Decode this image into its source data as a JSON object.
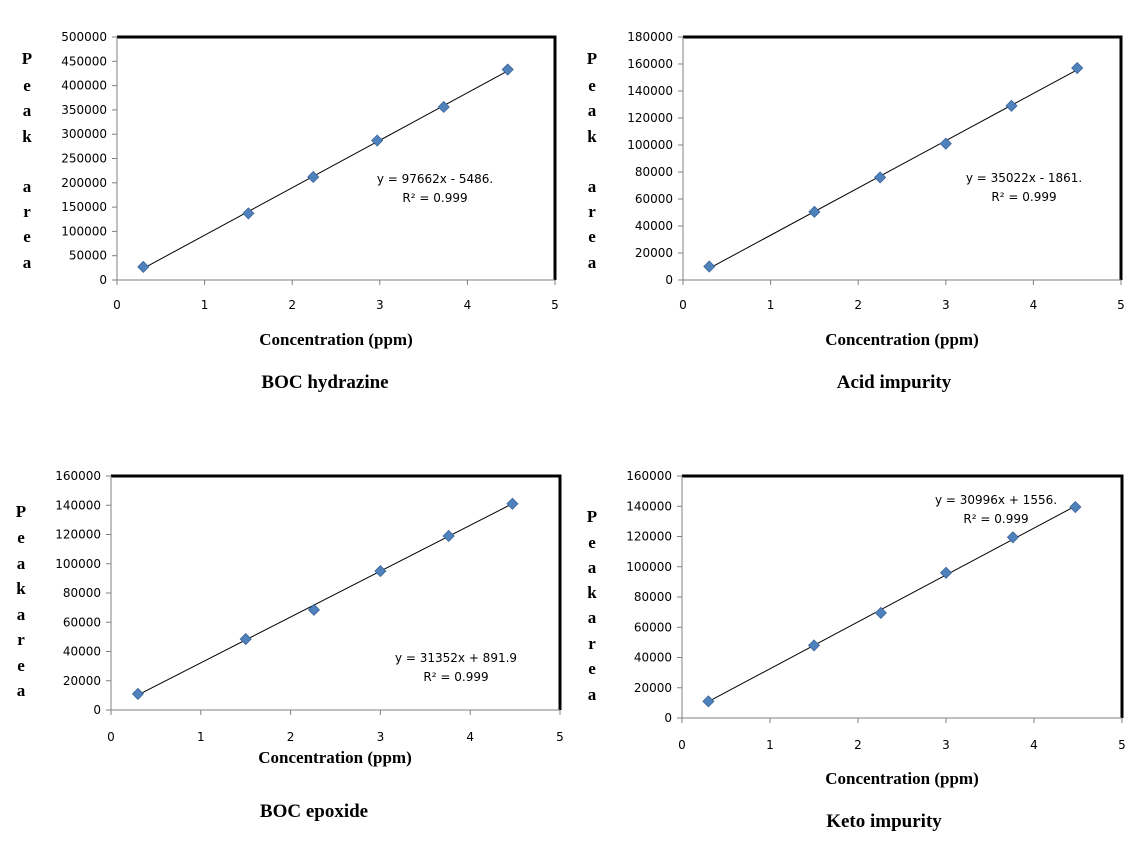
{
  "chart_data": [
    {
      "type": "scatter",
      "title": "BOC hydrazine",
      "xlabel": "Concentration (ppm)",
      "ylabel": "Peak area",
      "xlim": [
        0,
        5
      ],
      "ylim": [
        0,
        500000
      ],
      "xticks": [
        "0",
        "1",
        "2",
        "3",
        "4",
        "5"
      ],
      "yticks": [
        "0",
        "50000",
        "100000",
        "150000",
        "200000",
        "250000",
        "300000",
        "350000",
        "400000",
        "450000",
        "500000"
      ],
      "x": [
        0.3,
        1.5,
        2.24,
        2.97,
        3.73,
        4.46
      ],
      "y": [
        27000,
        137000,
        212000,
        287000,
        356000,
        433000
      ],
      "trendline": {
        "slope": 97662,
        "intercept": -5486
      },
      "equation": "y = 97662x - 5486.",
      "r2_label": "R² = 0.999",
      "grid": false
    },
    {
      "type": "scatter",
      "title": "Acid impurity",
      "xlabel": "Concentration (ppm)",
      "ylabel": "Peak area",
      "xlim": [
        0,
        5
      ],
      "ylim": [
        0,
        180000
      ],
      "xticks": [
        "0",
        "1",
        "2",
        "3",
        "4",
        "5"
      ],
      "yticks": [
        "0",
        "20000",
        "40000",
        "60000",
        "80000",
        "100000",
        "120000",
        "140000",
        "160000",
        "180000"
      ],
      "x": [
        0.3,
        1.5,
        2.25,
        3.0,
        3.75,
        4.5
      ],
      "y": [
        10000,
        50500,
        76000,
        101000,
        129000,
        157000
      ],
      "trendline": {
        "slope": 35022,
        "intercept": -1861
      },
      "equation": "y = 35022x - 1861.",
      "r2_label": "R² = 0.999",
      "grid": false
    },
    {
      "type": "scatter",
      "title": "BOC epoxide",
      "xlabel": "Concentration (ppm)",
      "ylabel": "Peakarea",
      "xlim": [
        0,
        5
      ],
      "ylim": [
        0,
        160000
      ],
      "xticks": [
        "0",
        "1",
        "2",
        "3",
        "4",
        "5"
      ],
      "yticks": [
        "0",
        "20000",
        "40000",
        "60000",
        "80000",
        "100000",
        "120000",
        "140000",
        "160000"
      ],
      "x": [
        0.3,
        1.5,
        2.26,
        3.0,
        3.76,
        4.47
      ],
      "y": [
        11000,
        48500,
        68500,
        95000,
        119000,
        141000
      ],
      "trendline": {
        "slope": 31352,
        "intercept": 891.9
      },
      "equation": "y = 31352x + 891.9",
      "r2_label": "R² = 0.999",
      "grid": false
    },
    {
      "type": "scatter",
      "title": "Keto impurity",
      "xlabel": "Concentration (ppm)",
      "ylabel": "Peakarea",
      "xlim": [
        0,
        5
      ],
      "ylim": [
        0,
        160000
      ],
      "xticks": [
        "0",
        "1",
        "2",
        "3",
        "4",
        "5"
      ],
      "yticks": [
        "0",
        "20000",
        "40000",
        "60000",
        "80000",
        "100000",
        "120000",
        "140000",
        "160000"
      ],
      "x": [
        0.3,
        1.5,
        2.26,
        3.0,
        3.76,
        4.47
      ],
      "y": [
        11000,
        48000,
        69500,
        96000,
        119500,
        139500
      ],
      "trendline": {
        "slope": 30996,
        "intercept": 1556
      },
      "equation": "y = 30996x + 1556.",
      "r2_label": "R² = 0.999",
      "grid": false
    }
  ],
  "colors": {
    "marker": "#4F81BD",
    "marker_edge": "#3A6597",
    "line": "#000000"
  }
}
